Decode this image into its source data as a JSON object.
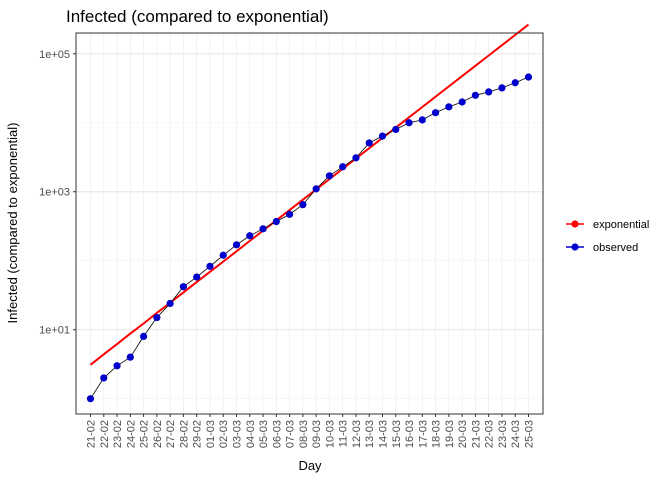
{
  "chart_data": {
    "type": "line",
    "title": "Infected (compared to exponential)",
    "xlabel": "Day",
    "ylabel": "Infected (compared to exponential)",
    "y_scale": "log10",
    "y_ticks": [
      10,
      1000,
      100000
    ],
    "y_tick_labels": [
      "1e+01",
      "1e+03",
      "1e+05"
    ],
    "ylim": [
      0.6,
      200000
    ],
    "grid": true,
    "legend_position": "right",
    "categories": [
      "21-02",
      "22-02",
      "23-02",
      "24-02",
      "25-02",
      "26-02",
      "27-02",
      "28-02",
      "29-02",
      "01-03",
      "02-03",
      "03-03",
      "04-03",
      "05-03",
      "06-03",
      "07-03",
      "08-03",
      "09-03",
      "10-03",
      "11-03",
      "12-03",
      "13-03",
      "14-03",
      "15-03",
      "16-03",
      "17-03",
      "18-03",
      "19-03",
      "20-03",
      "21-03",
      "22-03",
      "23-03",
      "24-03",
      "25-03"
    ],
    "series": [
      {
        "name": "exponential",
        "color": "#ff0000",
        "style": "line",
        "values": [
          3.1,
          4.4,
          6.2,
          8.8,
          12.3,
          17.5,
          24.6,
          34.7,
          49,
          69,
          97,
          137,
          194,
          273,
          385,
          543,
          766,
          1081,
          1524,
          2150,
          3032,
          4276,
          6031,
          8506,
          11997,
          16920,
          23864,
          33658,
          47471,
          66952,
          94428,
          133180,
          187836,
          264921
        ]
      },
      {
        "name": "observed",
        "color": "#0000cc",
        "style": "line+points",
        "values": [
          1,
          2,
          3,
          4,
          8,
          15,
          24,
          42,
          58,
          83,
          120,
          170,
          230,
          290,
          370,
          470,
          650,
          1100,
          1700,
          2300,
          3100,
          5100,
          6400,
          8000,
          10000,
          11000,
          14000,
          17000,
          20000,
          25000,
          28000,
          32000,
          38000,
          46000
        ]
      }
    ]
  }
}
